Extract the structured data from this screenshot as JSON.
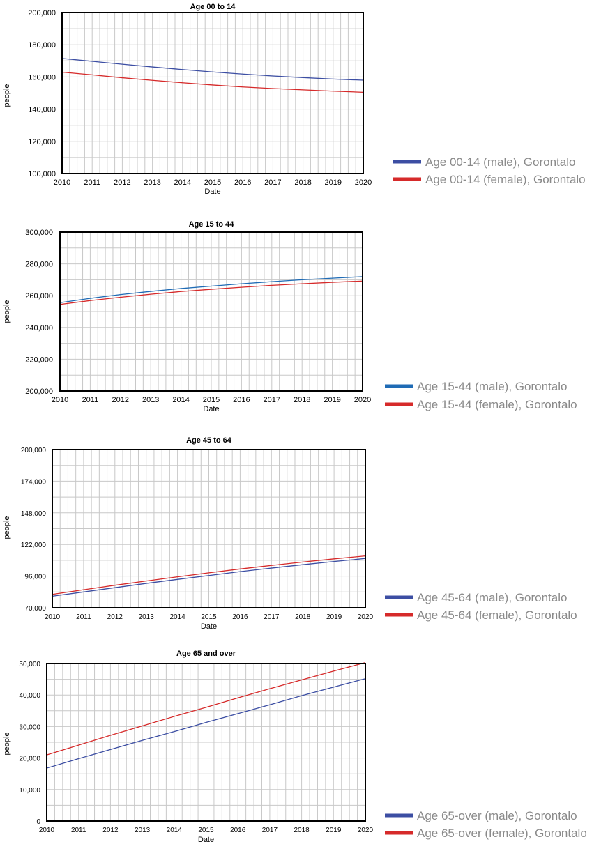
{
  "chart_data": [
    {
      "type": "line",
      "title": "Age 00 to 14",
      "xlabel": "Date",
      "ylabel": "people",
      "x": [
        2010,
        2011,
        2012,
        2013,
        2014,
        2015,
        2016,
        2017,
        2018,
        2019,
        2020
      ],
      "xlim": [
        2010,
        2020
      ],
      "ylim": [
        100000,
        200000
      ],
      "yticks": [
        "100,000",
        "120,000",
        "140,000",
        "160,000",
        "180,000",
        "200,000"
      ],
      "ytick_values": [
        100000,
        120000,
        140000,
        160000,
        180000,
        200000
      ],
      "grid": true,
      "legend_position": "right",
      "series": [
        {
          "name": "Age 00-14 (male), Gorontalo",
          "color": "#3c4ea3",
          "values": [
            171500,
            169700,
            167900,
            166200,
            164600,
            163100,
            161800,
            160600,
            159600,
            158700,
            158000
          ]
        },
        {
          "name": "Age 00-14 (female), Gorontalo",
          "color": "#d62a2a",
          "values": [
            163000,
            161300,
            159500,
            157900,
            156400,
            155000,
            153800,
            152800,
            152000,
            151200,
            150500
          ]
        }
      ]
    },
    {
      "type": "line",
      "title": "Age 15 to 44",
      "xlabel": "Date",
      "ylabel": "people",
      "x": [
        2010,
        2011,
        2012,
        2013,
        2014,
        2015,
        2016,
        2017,
        2018,
        2019,
        2020
      ],
      "xlim": [
        2010,
        2020
      ],
      "ylim": [
        200000,
        300000
      ],
      "yticks": [
        "200,000",
        "220,000",
        "240,000",
        "260,000",
        "280,000",
        "300,000"
      ],
      "ytick_values": [
        200000,
        220000,
        240000,
        260000,
        280000,
        300000
      ],
      "grid": true,
      "legend_position": "right",
      "series": [
        {
          "name": "Age 15-44 (male), Gorontalo",
          "color": "#1f6bb5",
          "values": [
            255600,
            258300,
            260700,
            262700,
            264500,
            266000,
            267500,
            268800,
            270000,
            271000,
            272000
          ]
        },
        {
          "name": "Age 15-44 (female), Gorontalo",
          "color": "#d62a2a",
          "values": [
            254500,
            256900,
            259000,
            260900,
            262600,
            264000,
            265300,
            266500,
            267500,
            268400,
            269200
          ]
        }
      ]
    },
    {
      "type": "line",
      "title": "Age 45 to 64",
      "xlabel": "Date",
      "ylabel": "people",
      "x": [
        2010,
        2011,
        2012,
        2013,
        2014,
        2015,
        2016,
        2017,
        2018,
        2019,
        2020
      ],
      "xlim": [
        2010,
        2020
      ],
      "ylim": [
        70000,
        200000
      ],
      "yticks": [
        "70,000",
        "96,000",
        "122,000",
        "148,000",
        "174,000",
        "200,000"
      ],
      "ytick_values": [
        70000,
        96000,
        122000,
        148000,
        174000,
        200000
      ],
      "grid": true,
      "legend_position": "right",
      "series": [
        {
          "name": "Age 45-64 (male), Gorontalo",
          "color": "#3c4ea3",
          "values": [
            79500,
            83000,
            86500,
            90000,
            93300,
            96500,
            99700,
            102600,
            105400,
            108000,
            110500
          ]
        },
        {
          "name": "Age 45-64 (female), Gorontalo",
          "color": "#d62a2a",
          "values": [
            81000,
            84800,
            88500,
            92000,
            95400,
            98700,
            101900,
            104800,
            107600,
            110200,
            112600
          ]
        }
      ]
    },
    {
      "type": "line",
      "title": "Age 65 and over",
      "xlabel": "Date",
      "ylabel": "people",
      "x": [
        2010,
        2011,
        2012,
        2013,
        2014,
        2015,
        2016,
        2017,
        2018,
        2019,
        2020
      ],
      "xlim": [
        2010,
        2020
      ],
      "ylim": [
        0,
        50000
      ],
      "yticks": [
        "0",
        "10,000",
        "20,000",
        "30,000",
        "40,000",
        "50,000"
      ],
      "ytick_values": [
        0,
        10000,
        20000,
        30000,
        40000,
        50000
      ],
      "grid": true,
      "legend_position": "right",
      "series": [
        {
          "name": "Age 65-over (male), Gorontalo",
          "color": "#3c4ea3",
          "values": [
            16800,
            19800,
            22700,
            25600,
            28400,
            31300,
            34100,
            36900,
            39800,
            42500,
            45200
          ]
        },
        {
          "name": "Age 65-over (female), Gorontalo",
          "color": "#d62a2a",
          "values": [
            21000,
            24100,
            27200,
            30200,
            33200,
            36100,
            39100,
            42000,
            44800,
            47600,
            50300
          ]
        }
      ]
    }
  ]
}
